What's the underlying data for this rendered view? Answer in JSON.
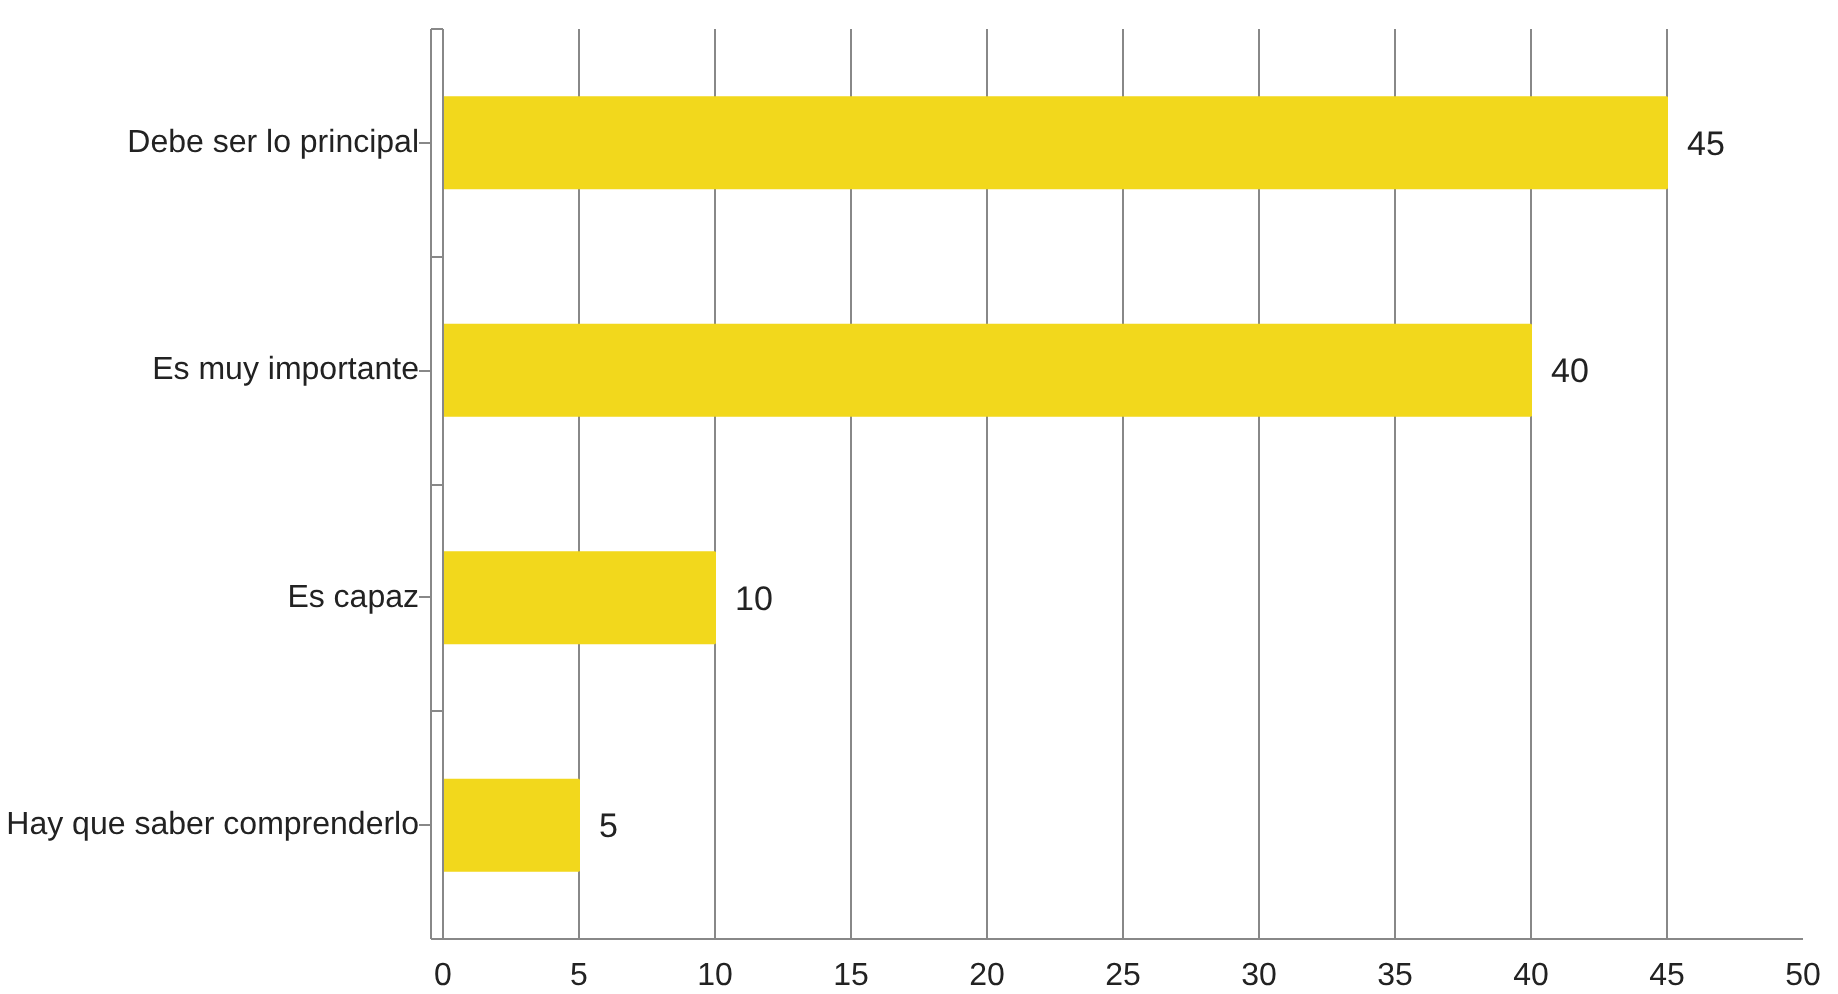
{
  "chart_data": {
    "type": "bar",
    "orientation": "horizontal",
    "categories": [
      "Debe ser lo principal",
      "Es muy importante",
      "Es capaz",
      "Hay que saber comprenderlo"
    ],
    "values": [
      45,
      40,
      10,
      5
    ],
    "color": "#f2d81c",
    "xlim": [
      0,
      50
    ],
    "xticks": [
      0,
      5,
      10,
      15,
      20,
      25,
      30,
      35,
      40,
      45,
      50
    ],
    "grid": "x",
    "data_labels": true
  }
}
